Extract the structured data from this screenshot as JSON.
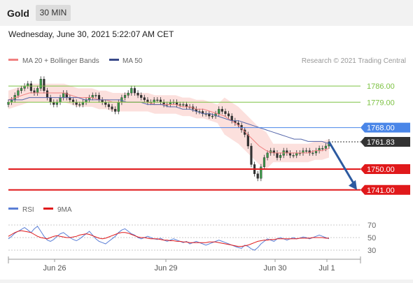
{
  "header": {
    "title": "Gold",
    "timeframe": "30 MIN"
  },
  "datetime": "Wednesday, June 30, 2021 5:22:07 AM CET",
  "legend": {
    "ma20_bb": "MA 20 + Bollinger Bands",
    "ma50": "MA 50",
    "credit": "Research © 2021 Trading Central"
  },
  "rsi_legend": {
    "rsi": "RSI",
    "ma9": "9MA"
  },
  "colors": {
    "resistance": "#7dc243",
    "pivot": "#4a86e8",
    "support": "#e0191b",
    "current": "#333333",
    "arrow": "#2c5aa0",
    "bollinger": "#fbd3cf",
    "ma20": "#f08080",
    "ma50": "#5566aa"
  },
  "chart_data": [
    {
      "type": "candlestick",
      "title": "Gold",
      "timeframe": "30 MIN",
      "x_ticks": [
        "Jun 26",
        "Jun 29",
        "Jun 30",
        "Jul 1"
      ],
      "ylim": [
        1737,
        1793
      ],
      "levels": [
        {
          "label": "1786.00",
          "value": 1786.0,
          "kind": "resistance"
        },
        {
          "label": "1779.00",
          "value": 1779.0,
          "kind": "resistance"
        },
        {
          "label": "1768.00",
          "value": 1768.0,
          "kind": "pivot"
        },
        {
          "label": "1761.83",
          "value": 1761.83,
          "kind": "current"
        },
        {
          "label": "1750.00",
          "value": 1750.0,
          "kind": "support"
        },
        {
          "label": "1741.00",
          "value": 1741.0,
          "kind": "support"
        }
      ],
      "close_series": [
        1779,
        1780,
        1782,
        1784,
        1785,
        1786,
        1787,
        1784,
        1783,
        1785,
        1789,
        1784,
        1781,
        1779,
        1778,
        1779,
        1781,
        1783,
        1781,
        1780,
        1779,
        1778,
        1778,
        1779,
        1780,
        1781,
        1782,
        1782,
        1780,
        1779,
        1778,
        1777,
        1776,
        1775,
        1779,
        1781,
        1782,
        1783,
        1785,
        1783,
        1782,
        1781,
        1780,
        1779,
        1779,
        1780,
        1780,
        1779,
        1778,
        1778,
        1779,
        1779,
        1778,
        1778,
        1778,
        1777,
        1777,
        1776,
        1775,
        1775,
        1774,
        1774,
        1773,
        1773,
        1774,
        1776,
        1775,
        1774,
        1773,
        1771,
        1770,
        1769,
        1767,
        1765,
        1760,
        1752,
        1748,
        1746,
        1751,
        1755,
        1757,
        1758,
        1757,
        1755,
        1756,
        1758,
        1757,
        1756,
        1756,
        1757,
        1757,
        1758,
        1758,
        1757,
        1757,
        1758,
        1759,
        1759,
        1760,
        1761.83
      ],
      "ma20": [
        1780,
        1781,
        1782,
        1783,
        1783,
        1783,
        1783,
        1783,
        1783,
        1782,
        1781,
        1781,
        1781,
        1780,
        1780,
        1779,
        1779,
        1779,
        1779,
        1779,
        1779,
        1778,
        1778,
        1778,
        1778,
        1777,
        1777,
        1776,
        1776,
        1775,
        1774,
        1773,
        1771,
        1769,
        1766,
        1763,
        1760,
        1758,
        1757,
        1757,
        1757,
        1757,
        1757,
        1757,
        1758,
        1758,
        1759
      ],
      "ma50": [
        1780,
        1780,
        1780,
        1781,
        1781,
        1781,
        1781,
        1781,
        1781,
        1781,
        1781,
        1780,
        1780,
        1780,
        1780,
        1780,
        1780,
        1779,
        1779,
        1779,
        1778,
        1778,
        1778,
        1777,
        1777,
        1776,
        1776,
        1775,
        1774,
        1774,
        1773,
        1772,
        1771,
        1771,
        1770,
        1769,
        1768,
        1767,
        1766,
        1765,
        1764,
        1763,
        1763,
        1762,
        1762,
        1762,
        1761
      ],
      "projection": {
        "from": 1761.83,
        "to": 1741.0
      }
    },
    {
      "type": "line",
      "title": "RSI",
      "ylim": [
        20,
        80
      ],
      "y_ticks": [
        70,
        50,
        30
      ],
      "series": [
        {
          "name": "RSI",
          "values": [
            48,
            52,
            57,
            60,
            63,
            66,
            62,
            58,
            64,
            68,
            60,
            52,
            46,
            44,
            47,
            52,
            56,
            58,
            54,
            50,
            47,
            45,
            48,
            52,
            56,
            60,
            54,
            48,
            44,
            42,
            40,
            44,
            48,
            52,
            58,
            62,
            64,
            60,
            56,
            54,
            50,
            48,
            50,
            52,
            50,
            48,
            47,
            49,
            46,
            44,
            46,
            48,
            46,
            44,
            42,
            44,
            40,
            42,
            44,
            42,
            40,
            38,
            40,
            42,
            44,
            46,
            44,
            42,
            40,
            38,
            36,
            34,
            33,
            38,
            36,
            32,
            30,
            34,
            40,
            44,
            48,
            46,
            44,
            48,
            50,
            48,
            46,
            48,
            50,
            48,
            49,
            51,
            50,
            48,
            50,
            52,
            54,
            52,
            50,
            48
          ]
        },
        {
          "name": "9MA",
          "values": [
            52,
            55,
            58,
            60,
            61,
            60,
            59,
            58,
            55,
            52,
            50,
            49,
            48,
            50,
            52,
            53,
            52,
            51,
            50,
            50,
            51,
            52,
            54,
            55,
            56,
            55,
            53,
            51,
            49,
            48,
            49,
            51,
            53,
            55,
            57,
            58,
            58,
            57,
            55,
            53,
            51,
            50,
            50,
            49,
            48,
            48,
            48,
            47,
            46,
            46,
            45,
            45,
            44,
            44,
            43,
            43,
            42,
            42,
            42,
            42,
            42,
            42,
            43,
            43,
            43,
            42,
            41,
            40,
            39,
            38,
            37,
            36,
            36,
            37,
            38,
            40,
            42,
            44,
            45,
            46,
            46,
            47,
            47,
            48,
            48,
            48,
            48,
            48,
            48,
            48,
            49,
            49,
            49,
            49,
            50,
            50,
            50,
            50,
            49,
            49
          ]
        }
      ]
    }
  ]
}
